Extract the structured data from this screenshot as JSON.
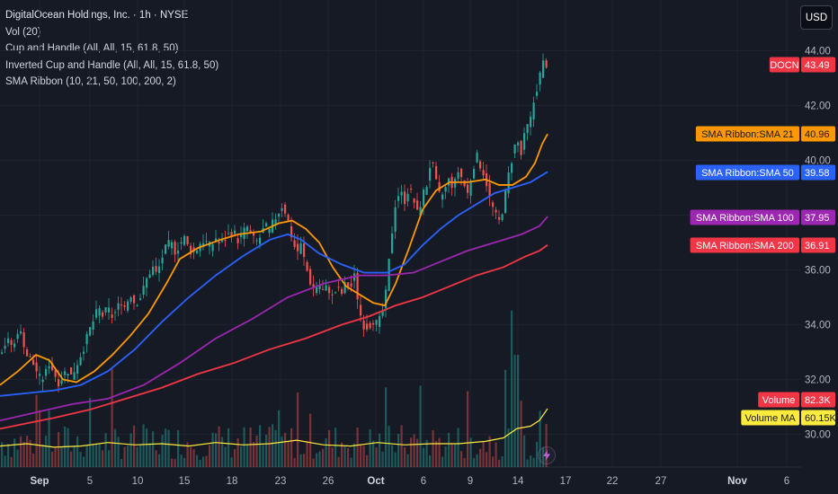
{
  "legend": {
    "title": "DigitalOcean Holdings, Inc. · 1h · NYSE",
    "lines": [
      "Vol (20)",
      "Cup and Handle (All, All, 15, 61.8, 50)",
      "Inverted Cup and Handle (All, All, 15, 61.8, 50)",
      "SMA Ribbon (10, 21, 50, 100, 200, 2)"
    ]
  },
  "currency_button": "USD",
  "icons": {
    "indicator": "lightning-bolt-icon"
  },
  "colors": {
    "background": "#161a25",
    "up": "#26a69a",
    "down": "#ef5350",
    "sma21": "#ff9800",
    "sma50": "#2962ff",
    "sma100": "#9c27b0",
    "sma200": "#f23645",
    "volume_ma": "#ffeb3b"
  },
  "chart_data": {
    "type": "candlestick",
    "symbol": "DOCN",
    "interval": "1h",
    "x_ticks": [
      "Sep",
      "5",
      "10",
      "15",
      "18",
      "23",
      "26",
      "Oct",
      "6",
      "9",
      "14",
      "17",
      "22",
      "27",
      "Nov",
      "6"
    ],
    "y_ticks": [
      30.0,
      32.0,
      34.0,
      36.0,
      38.0,
      40.0,
      42.0,
      44.0
    ],
    "ylim": [
      29.0,
      44.5
    ],
    "grid": true,
    "price_labels": [
      {
        "label": "DOCN",
        "value": "43.49",
        "y": 43.49,
        "color": "#f23645"
      },
      {
        "label": "SMA Ribbon:SMA 21",
        "value": "40.96",
        "y": 40.96,
        "color": "#ff9800"
      },
      {
        "label": "SMA Ribbon:SMA 50",
        "value": "39.58",
        "y": 39.58,
        "color": "#2962ff"
      },
      {
        "label": "SMA Ribbon:SMA 100",
        "value": "37.95",
        "y": 37.95,
        "color": "#9c27b0"
      },
      {
        "label": "SMA Ribbon:SMA 200",
        "value": "36.91",
        "y": 36.91,
        "color": "#f23645"
      }
    ],
    "volume_labels": [
      {
        "label": "Volume",
        "value": "82.3K",
        "color": "#f23645"
      },
      {
        "label": "Volume MA",
        "value": "60.15K",
        "color": "#ffeb3b"
      }
    ],
    "price_path": [
      [
        0,
        33.0
      ],
      [
        8,
        33.4
      ],
      [
        16,
        33.2
      ],
      [
        20,
        33.8
      ],
      [
        25,
        33.6
      ],
      [
        30,
        32.9
      ],
      [
        35,
        32.7
      ],
      [
        40,
        32.4
      ],
      [
        45,
        32.0
      ],
      [
        50,
        32.1
      ],
      [
        55,
        32.6
      ],
      [
        60,
        32.3
      ],
      [
        65,
        31.9
      ],
      [
        70,
        32.1
      ],
      [
        75,
        32.4
      ],
      [
        80,
        32.1
      ],
      [
        85,
        32.5
      ],
      [
        90,
        32.9
      ],
      [
        95,
        33.3
      ],
      [
        100,
        33.8
      ],
      [
        105,
        34.2
      ],
      [
        110,
        34.6
      ],
      [
        115,
        34.3
      ],
      [
        120,
        34.6
      ],
      [
        125,
        34.3
      ],
      [
        130,
        34.5
      ],
      [
        135,
        34.9
      ],
      [
        140,
        34.6
      ],
      [
        145,
        35.2
      ],
      [
        150,
        34.8
      ],
      [
        155,
        34.9
      ],
      [
        160,
        35.3
      ],
      [
        165,
        35.8
      ],
      [
        170,
        36.1
      ],
      [
        175,
        35.8
      ],
      [
        180,
        36.4
      ],
      [
        185,
        36.8
      ],
      [
        190,
        37.0
      ],
      [
        195,
        36.7
      ],
      [
        200,
        36.9
      ],
      [
        205,
        37.2
      ],
      [
        210,
        36.8
      ],
      [
        215,
        36.6
      ],
      [
        220,
        36.8
      ],
      [
        225,
        37.1
      ],
      [
        230,
        37.0
      ],
      [
        235,
        36.8
      ],
      [
        240,
        37.2
      ],
      [
        245,
        36.9
      ],
      [
        250,
        37.1
      ],
      [
        255,
        37.3
      ],
      [
        260,
        37.4
      ],
      [
        265,
        37.1
      ],
      [
        270,
        37.3
      ],
      [
        275,
        37.6
      ],
      [
        280,
        37.2
      ],
      [
        285,
        37.0
      ],
      [
        290,
        37.2
      ],
      [
        295,
        37.6
      ],
      [
        300,
        37.4
      ],
      [
        305,
        37.8
      ],
      [
        310,
        38.1
      ],
      [
        315,
        38.4
      ],
      [
        320,
        37.9
      ],
      [
        325,
        37.2
      ],
      [
        330,
        36.6
      ],
      [
        335,
        36.9
      ],
      [
        340,
        36.2
      ],
      [
        345,
        35.6
      ],
      [
        350,
        35.3
      ],
      [
        355,
        35.5
      ],
      [
        360,
        35.2
      ],
      [
        365,
        35.4
      ],
      [
        370,
        35.0
      ],
      [
        375,
        35.3
      ],
      [
        380,
        35.1
      ],
      [
        385,
        35.5
      ],
      [
        390,
        35.3
      ],
      [
        395,
        35.8
      ],
      [
        400,
        34.5
      ],
      [
        405,
        34.0
      ],
      [
        410,
        33.9
      ],
      [
        415,
        34.2
      ],
      [
        420,
        34.0
      ],
      [
        425,
        34.3
      ],
      [
        430,
        35.2
      ],
      [
        435,
        37.0
      ],
      [
        440,
        38.4
      ],
      [
        445,
        38.9
      ],
      [
        450,
        38.5
      ],
      [
        455,
        39.0
      ],
      [
        460,
        38.6
      ],
      [
        465,
        38.0
      ],
      [
        470,
        38.7
      ],
      [
        475,
        39.1
      ],
      [
        480,
        40.1
      ],
      [
        485,
        39.2
      ],
      [
        490,
        38.6
      ],
      [
        495,
        38.9
      ],
      [
        500,
        39.3
      ],
      [
        505,
        39.0
      ],
      [
        510,
        39.6
      ],
      [
        515,
        39.3
      ],
      [
        520,
        38.7
      ],
      [
        525,
        39.5
      ],
      [
        530,
        40.2
      ],
      [
        535,
        39.8
      ],
      [
        540,
        39.4
      ],
      [
        545,
        38.6
      ],
      [
        550,
        38.1
      ],
      [
        555,
        37.7
      ],
      [
        560,
        38.3
      ],
      [
        565,
        39.3
      ],
      [
        570,
        40.1
      ],
      [
        575,
        40.8
      ],
      [
        580,
        40.2
      ],
      [
        585,
        41.1
      ],
      [
        590,
        41.4
      ],
      [
        595,
        42.3
      ],
      [
        600,
        43.0
      ],
      [
        605,
        43.6
      ],
      [
        609,
        43.49
      ]
    ],
    "series": [
      {
        "name": "SMA Ribbon:SMA 21",
        "color": "#ff9800",
        "points": [
          [
            0,
            31.8
          ],
          [
            20,
            32.3
          ],
          [
            40,
            32.9
          ],
          [
            55,
            32.7
          ],
          [
            70,
            32.0
          ],
          [
            85,
            31.9
          ],
          [
            105,
            32.3
          ],
          [
            125,
            32.9
          ],
          [
            145,
            33.6
          ],
          [
            165,
            34.4
          ],
          [
            185,
            35.5
          ],
          [
            200,
            36.4
          ],
          [
            220,
            36.8
          ],
          [
            245,
            37.1
          ],
          [
            265,
            37.3
          ],
          [
            290,
            37.4
          ],
          [
            310,
            37.7
          ],
          [
            325,
            37.8
          ],
          [
            340,
            37.5
          ],
          [
            355,
            37.0
          ],
          [
            370,
            36.1
          ],
          [
            385,
            35.4
          ],
          [
            400,
            35.1
          ],
          [
            415,
            34.8
          ],
          [
            428,
            34.7
          ],
          [
            440,
            35.5
          ],
          [
            455,
            36.8
          ],
          [
            470,
            38.2
          ],
          [
            485,
            38.9
          ],
          [
            500,
            39.2
          ],
          [
            520,
            39.2
          ],
          [
            540,
            39.3
          ],
          [
            555,
            39.1
          ],
          [
            570,
            39.1
          ],
          [
            585,
            39.4
          ],
          [
            595,
            39.9
          ],
          [
            603,
            40.6
          ],
          [
            609,
            40.96
          ]
        ]
      },
      {
        "name": "SMA Ribbon:SMA 50",
        "color": "#2962ff",
        "points": [
          [
            0,
            31.4
          ],
          [
            30,
            31.5
          ],
          [
            60,
            31.6
          ],
          [
            90,
            31.8
          ],
          [
            120,
            32.3
          ],
          [
            150,
            33.1
          ],
          [
            180,
            34.1
          ],
          [
            210,
            35.0
          ],
          [
            240,
            35.8
          ],
          [
            270,
            36.5
          ],
          [
            300,
            37.1
          ],
          [
            320,
            37.3
          ],
          [
            335,
            37.1
          ],
          [
            355,
            36.6
          ],
          [
            380,
            36.2
          ],
          [
            405,
            35.9
          ],
          [
            430,
            35.9
          ],
          [
            450,
            36.2
          ],
          [
            470,
            36.9
          ],
          [
            490,
            37.5
          ],
          [
            510,
            38.0
          ],
          [
            530,
            38.4
          ],
          [
            550,
            38.8
          ],
          [
            570,
            39.0
          ],
          [
            590,
            39.2
          ],
          [
            609,
            39.58
          ]
        ]
      },
      {
        "name": "SMA Ribbon:SMA 100",
        "color": "#9c27b0",
        "points": [
          [
            0,
            30.5
          ],
          [
            40,
            30.8
          ],
          [
            80,
            31.1
          ],
          [
            120,
            31.3
          ],
          [
            160,
            31.8
          ],
          [
            200,
            32.6
          ],
          [
            240,
            33.5
          ],
          [
            280,
            34.2
          ],
          [
            320,
            35.0
          ],
          [
            360,
            35.5
          ],
          [
            400,
            35.8
          ],
          [
            430,
            35.8
          ],
          [
            460,
            35.9
          ],
          [
            490,
            36.3
          ],
          [
            520,
            36.7
          ],
          [
            550,
            37.0
          ],
          [
            580,
            37.3
          ],
          [
            600,
            37.6
          ],
          [
            609,
            37.95
          ]
        ]
      },
      {
        "name": "SMA Ribbon:SMA 200",
        "color": "#f23645",
        "points": [
          [
            0,
            30.2
          ],
          [
            30,
            30.4
          ],
          [
            60,
            30.6
          ],
          [
            100,
            30.9
          ],
          [
            140,
            31.3
          ],
          [
            180,
            31.7
          ],
          [
            220,
            32.2
          ],
          [
            260,
            32.6
          ],
          [
            300,
            33.1
          ],
          [
            340,
            33.5
          ],
          [
            380,
            34.0
          ],
          [
            410,
            34.3
          ],
          [
            440,
            34.7
          ],
          [
            470,
            35.0
          ],
          [
            500,
            35.4
          ],
          [
            530,
            35.8
          ],
          [
            560,
            36.1
          ],
          [
            585,
            36.5
          ],
          [
            600,
            36.7
          ],
          [
            609,
            36.91
          ]
        ]
      }
    ],
    "volume_ma_points": [
      [
        0,
        0.18
      ],
      [
        30,
        0.2
      ],
      [
        60,
        0.17
      ],
      [
        90,
        0.18
      ],
      [
        120,
        0.21
      ],
      [
        150,
        0.19
      ],
      [
        180,
        0.2
      ],
      [
        210,
        0.18
      ],
      [
        240,
        0.21
      ],
      [
        270,
        0.19
      ],
      [
        300,
        0.2
      ],
      [
        330,
        0.23
      ],
      [
        360,
        0.19
      ],
      [
        390,
        0.18
      ],
      [
        420,
        0.21
      ],
      [
        450,
        0.19
      ],
      [
        480,
        0.2
      ],
      [
        510,
        0.2
      ],
      [
        540,
        0.22
      ],
      [
        560,
        0.25
      ],
      [
        575,
        0.33
      ],
      [
        590,
        0.35
      ],
      [
        600,
        0.4
      ],
      [
        609,
        0.5
      ]
    ]
  }
}
